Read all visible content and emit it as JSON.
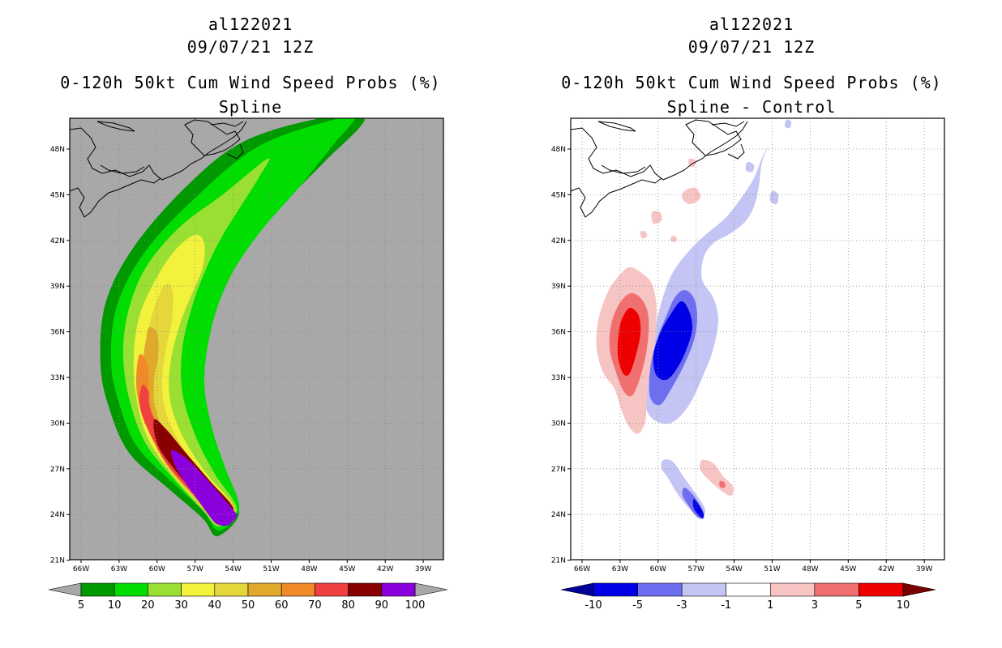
{
  "chart_data": [
    {
      "type": "filled-contour-map",
      "storm_id": "al122021",
      "datetime": "09/07/21 12Z",
      "title": "0-120h 50kt Cum Wind Speed Probs (%)",
      "subtitle": "Spline",
      "lat_ticks": [
        "48N",
        "45N",
        "42N",
        "39N",
        "36N",
        "33N",
        "30N",
        "27N",
        "24N",
        "21N"
      ],
      "lon_ticks": [
        "66W",
        "63W",
        "60W",
        "57W",
        "54W",
        "51W",
        "48W",
        "45W",
        "42W",
        "39W"
      ],
      "lat_range": [
        21,
        50
      ],
      "lon_range": [
        -67,
        -37.5
      ],
      "colorbar_levels": [
        "5",
        "10",
        "20",
        "30",
        "40",
        "50",
        "60",
        "70",
        "80",
        "90",
        "100"
      ],
      "colorbar_colors": [
        "#009900",
        "#00dd00",
        "#99e033",
        "#f2f23d",
        "#e5d63c",
        "#e0a92c",
        "#f08a28",
        "#f04040",
        "#880000",
        "#8a00dd"
      ],
      "colorbar_end_colors": [
        "#a8a8a8",
        "#a8a8a8"
      ],
      "background_color": "#a8a8a8",
      "track_points": [
        {
          "lon": -55.2,
          "lat": 23.5,
          "prob": 100
        },
        {
          "lon": -57.5,
          "lat": 27.5,
          "prob": 90
        },
        {
          "lon": -60.0,
          "lat": 31.5,
          "prob": 70
        },
        {
          "lon": -61.0,
          "lat": 35.0,
          "prob": 50
        },
        {
          "lon": -59.8,
          "lat": 39.5,
          "prob": 30
        },
        {
          "lon": -56.5,
          "lat": 44.0,
          "prob": 20
        },
        {
          "lon": -52.0,
          "lat": 49.5,
          "prob": 10
        }
      ]
    },
    {
      "type": "filled-contour-map",
      "storm_id": "al122021",
      "datetime": "09/07/21 12Z",
      "title": "0-120h 50kt Cum Wind Speed Probs (%)",
      "subtitle": "Spline - Control",
      "lat_ticks": [
        "48N",
        "45N",
        "42N",
        "39N",
        "36N",
        "33N",
        "30N",
        "27N",
        "24N",
        "21N"
      ],
      "lon_ticks": [
        "66W",
        "63W",
        "60W",
        "57W",
        "54W",
        "51W",
        "48W",
        "45W",
        "42W",
        "39W"
      ],
      "lat_range": [
        21,
        50
      ],
      "lon_range": [
        -67,
        -37.5
      ],
      "colorbar_levels": [
        "-10",
        "-5",
        "-3",
        "-1",
        "1",
        "3",
        "5",
        "10"
      ],
      "colorbar_colors": [
        "#0000e6",
        "#6e6ef0",
        "#c4c4f5",
        "#ffffff",
        "#f7c4c4",
        "#f07070",
        "#ee0000"
      ],
      "colorbar_end_colors": [
        "#000099",
        "#770000"
      ],
      "background_color": "#ffffff",
      "features": [
        {
          "sign": "positive",
          "center_lon": -63.0,
          "center_lat": 35.3,
          "peak": 10
        },
        {
          "sign": "negative",
          "center_lon": -58.5,
          "center_lat": 35.0,
          "peak": -10
        },
        {
          "sign": "negative",
          "center_lon": -56.5,
          "center_lat": 25.0,
          "peak": -10
        },
        {
          "sign": "positive",
          "center_lon": -55.0,
          "center_lat": 26.5,
          "peak": 5
        }
      ]
    }
  ]
}
